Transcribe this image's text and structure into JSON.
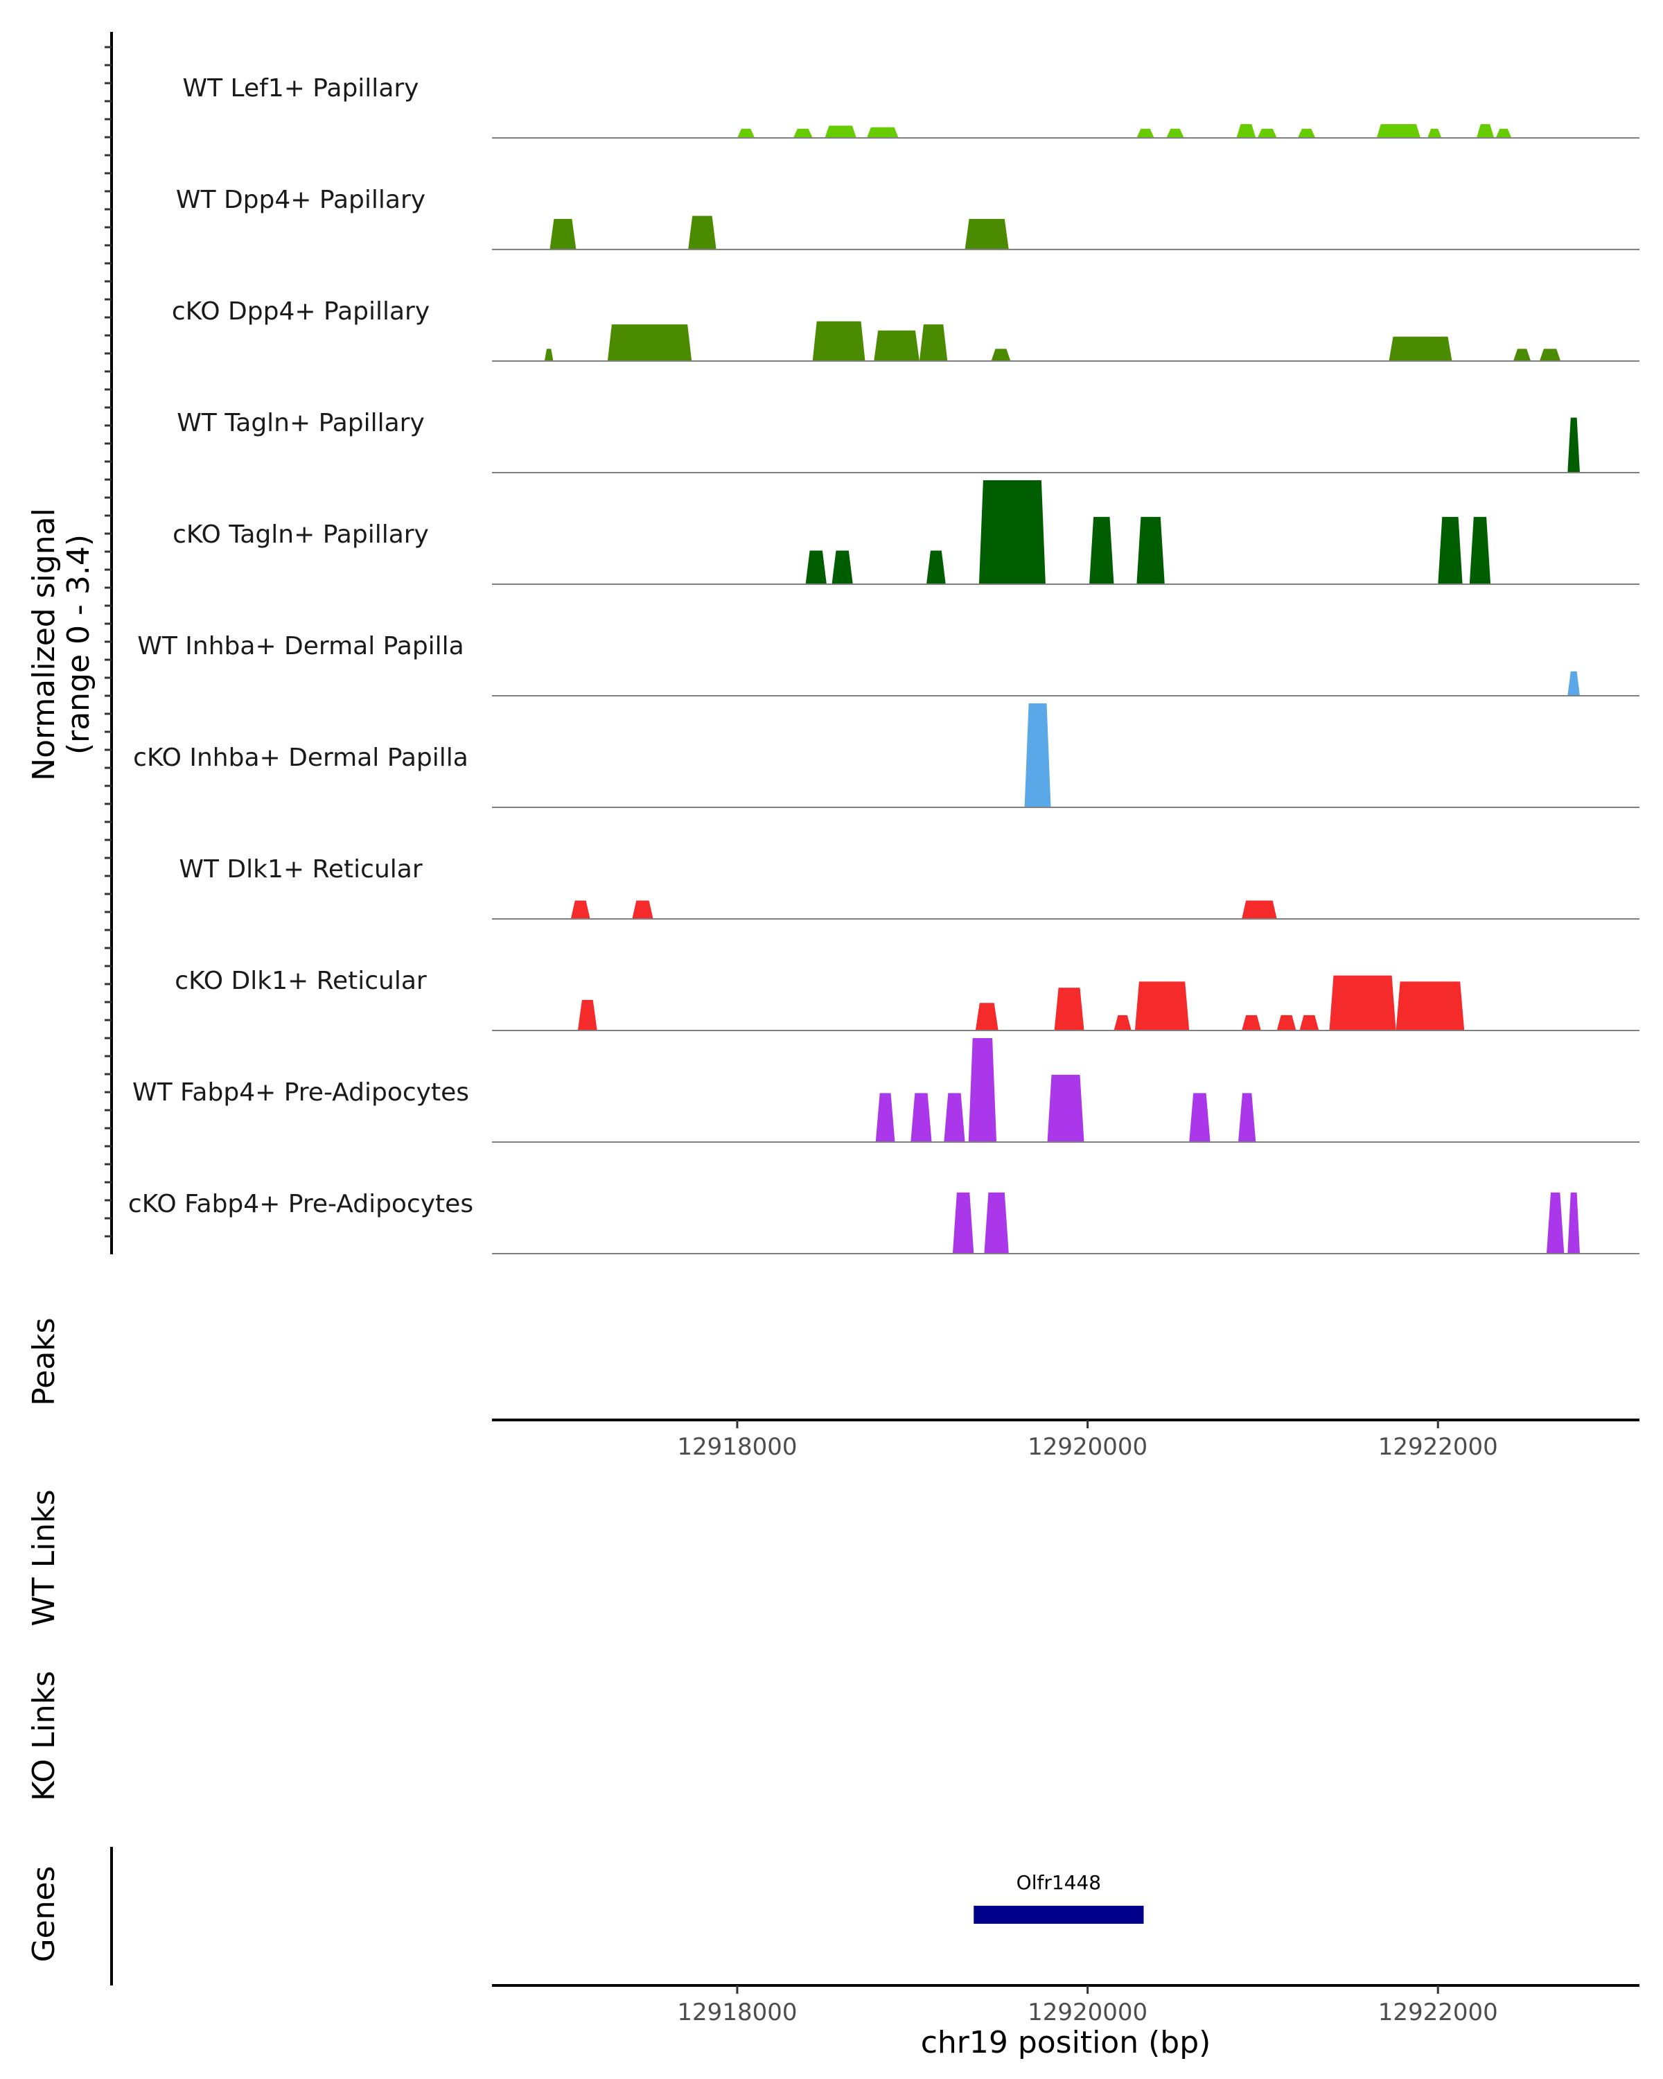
{
  "chart_data": {
    "type": "area",
    "title": "",
    "xlabel": "chr19 position (bp)",
    "xlim": [
      12916600,
      12923150
    ],
    "x_ticks": [
      {
        "value": 12918000,
        "label": "12918000"
      },
      {
        "value": 12920000,
        "label": "12920000"
      },
      {
        "value": 12922000,
        "label": "12922000"
      }
    ],
    "signal_axis": {
      "title_line1": "Normalized signal",
      "title_line2": "(range 0 - 3.4)",
      "ylim": [
        0,
        3.4
      ]
    },
    "tracks": [
      {
        "name": "WT Lef1+ Papillary",
        "color": "#66cc00",
        "peaks": [
          [
            12918000,
            12918100,
            0.3
          ],
          [
            12918320,
            12918430,
            0.3
          ],
          [
            12918500,
            12918680,
            0.4
          ],
          [
            12918740,
            12918920,
            0.35
          ],
          [
            12920280,
            12920380,
            0.3
          ],
          [
            12920450,
            12920550,
            0.3
          ],
          [
            12920850,
            12920960,
            0.45
          ],
          [
            12920970,
            12921080,
            0.3
          ],
          [
            12921200,
            12921300,
            0.3
          ],
          [
            12921650,
            12921900,
            0.45
          ],
          [
            12921940,
            12922020,
            0.3
          ],
          [
            12922220,
            12922320,
            0.45
          ],
          [
            12922330,
            12922420,
            0.3
          ]
        ]
      },
      {
        "name": "WT Dpp4+ Papillary",
        "color": "#4b8b00",
        "peaks": [
          [
            12916930,
            12917080,
            1.0
          ],
          [
            12917720,
            12917880,
            1.1
          ],
          [
            12919300,
            12919550,
            1.0
          ]
        ]
      },
      {
        "name": "cKO Dpp4+ Papillary",
        "color": "#4b8b00",
        "peaks": [
          [
            12916900,
            12916950,
            0.4
          ],
          [
            12917260,
            12917740,
            1.2
          ],
          [
            12918430,
            12918730,
            1.3
          ],
          [
            12918780,
            12919040,
            1.0
          ],
          [
            12919040,
            12919200,
            1.2
          ],
          [
            12919450,
            12919560,
            0.4
          ],
          [
            12921720,
            12922080,
            0.8
          ],
          [
            12922430,
            12922530,
            0.4
          ],
          [
            12922580,
            12922700,
            0.4
          ]
        ]
      },
      {
        "name": "WT Tagln+ Papillary",
        "color": "#005e00",
        "peaks": [
          [
            12922740,
            12922810,
            1.8
          ]
        ]
      },
      {
        "name": "cKO Tagln+ Papillary",
        "color": "#005e00",
        "peaks": [
          [
            12918390,
            12918510,
            1.1
          ],
          [
            12918540,
            12918660,
            1.1
          ],
          [
            12919080,
            12919190,
            1.1
          ],
          [
            12919380,
            12919760,
            3.4
          ],
          [
            12920010,
            12920150,
            2.2
          ],
          [
            12920280,
            12920440,
            2.2
          ],
          [
            12922000,
            12922140,
            2.2
          ],
          [
            12922180,
            12922300,
            2.2
          ]
        ]
      },
      {
        "name": "WT Inhba+ Dermal Papilla",
        "color": "#5aa8e8",
        "peaks": [
          [
            12922740,
            12922810,
            0.8
          ]
        ]
      },
      {
        "name": "cKO Inhba+ Dermal Papilla",
        "color": "#5aa8e8",
        "peaks": [
          [
            12919640,
            12919790,
            3.4
          ]
        ]
      },
      {
        "name": "WT Dlk1+ Reticular",
        "color": "#f52a2a",
        "peaks": [
          [
            12917050,
            12917160,
            0.6
          ],
          [
            12917400,
            12917520,
            0.6
          ],
          [
            12920880,
            12921080,
            0.6
          ]
        ]
      },
      {
        "name": "cKO Dlk1+ Reticular",
        "color": "#f52a2a",
        "peaks": [
          [
            12917090,
            12917200,
            1.0
          ],
          [
            12919360,
            12919490,
            0.9
          ],
          [
            12919810,
            12919980,
            1.4
          ],
          [
            12920150,
            12920250,
            0.5
          ],
          [
            12920270,
            12920580,
            1.6
          ],
          [
            12920880,
            12920990,
            0.5
          ],
          [
            12921080,
            12921190,
            0.5
          ],
          [
            12921210,
            12921320,
            0.5
          ],
          [
            12921380,
            12921760,
            1.8
          ],
          [
            12921760,
            12922150,
            1.6
          ]
        ]
      },
      {
        "name": "WT Fabp4+ Pre-Adipocytes",
        "color": "#ab37ea",
        "peaks": [
          [
            12918790,
            12918900,
            1.6
          ],
          [
            12918990,
            12919110,
            1.6
          ],
          [
            12919180,
            12919300,
            1.6
          ],
          [
            12919320,
            12919480,
            3.4
          ],
          [
            12919770,
            12919980,
            2.2
          ],
          [
            12920580,
            12920700,
            1.6
          ],
          [
            12920860,
            12920960,
            1.6
          ]
        ]
      },
      {
        "name": "cKO Fabp4+ Pre-Adipocytes",
        "color": "#ab37ea",
        "peaks": [
          [
            12919230,
            12919350,
            2.0
          ],
          [
            12919410,
            12919550,
            2.0
          ],
          [
            12922620,
            12922720,
            2.0
          ],
          [
            12922740,
            12922810,
            2.0
          ]
        ]
      }
    ],
    "other_tracks": {
      "peaks_label": "Peaks",
      "wt_links_label": "WT Links",
      "ko_links_label": "KO Links",
      "genes_label": "Genes"
    },
    "genes": [
      {
        "name": "Olfr1448",
        "start": 12919350,
        "end": 12920320,
        "color": "#00008b"
      }
    ]
  }
}
